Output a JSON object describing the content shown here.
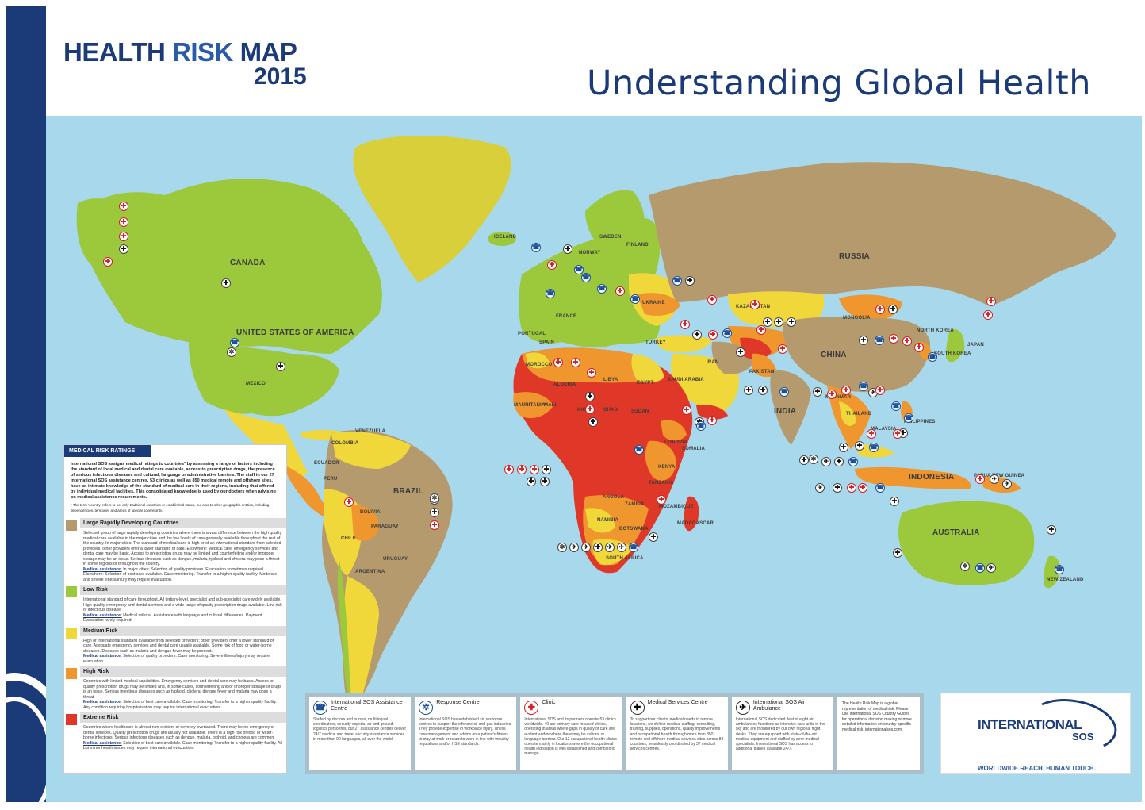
{
  "header": {
    "title_part1": "HEALTH",
    "title_part2": "RISK",
    "title_part3": "MAP",
    "year": "2015",
    "subtitle": "Understanding Global Health"
  },
  "colors": {
    "low_risk": "#9cc83c",
    "medium_risk": "#f0d83a",
    "high_risk": "#f0962e",
    "extreme_risk": "#e03828",
    "developing": "#b59a6e",
    "ocean": "#a8d8ec",
    "brand_navy": "#1a3a78"
  },
  "map_labels": [
    {
      "text": "CANADA"
    },
    {
      "text": "UNITED STATES OF AMERICA"
    },
    {
      "text": "MEXICO"
    },
    {
      "text": "BRAZIL"
    },
    {
      "text": "PERU"
    },
    {
      "text": "BOLIVIA"
    },
    {
      "text": "CHILE"
    },
    {
      "text": "ARGENTINA"
    },
    {
      "text": "COLOMBIA"
    },
    {
      "text": "VENEZUELA"
    },
    {
      "text": "ECUADOR"
    },
    {
      "text": "PARAGUAY"
    },
    {
      "text": "URUGUAY"
    },
    {
      "text": "ICELAND"
    },
    {
      "text": "NORWAY"
    },
    {
      "text": "SWEDEN"
    },
    {
      "text": "FINLAND"
    },
    {
      "text": "FRANCE"
    },
    {
      "text": "SPAIN"
    },
    {
      "text": "PORTUGAL"
    },
    {
      "text": "RUSSIA"
    },
    {
      "text": "UKRAINE"
    },
    {
      "text": "TURKEY"
    },
    {
      "text": "KAZAKHSTAN"
    },
    {
      "text": "MONGOLIA"
    },
    {
      "text": "CHINA"
    },
    {
      "text": "JAPAN"
    },
    {
      "text": "SOUTH KOREA"
    },
    {
      "text": "NORTH KOREA"
    },
    {
      "text": "IRAN"
    },
    {
      "text": "PAKISTAN"
    },
    {
      "text": "INDIA"
    },
    {
      "text": "MYANMAR"
    },
    {
      "text": "THAILAND"
    },
    {
      "text": "PHILIPPINES"
    },
    {
      "text": "MALAYSIA"
    },
    {
      "text": "INDONESIA"
    },
    {
      "text": "PAPUA NEW GUINEA"
    },
    {
      "text": "AUSTRALIA"
    },
    {
      "text": "NEW ZEALAND"
    },
    {
      "text": "ALGERIA"
    },
    {
      "text": "LIBYA"
    },
    {
      "text": "EGYPT"
    },
    {
      "text": "MALI"
    },
    {
      "text": "NIGER"
    },
    {
      "text": "CHAD"
    },
    {
      "text": "SUDAN"
    },
    {
      "text": "ETHIOPIA"
    },
    {
      "text": "SOMALIA"
    },
    {
      "text": "KENYA"
    },
    {
      "text": "TANZANIA"
    },
    {
      "text": "ANGOLA"
    },
    {
      "text": "ZAMBIA"
    },
    {
      "text": "NAMIBIA"
    },
    {
      "text": "BOTSWANA"
    },
    {
      "text": "SOUTH AFRICA"
    },
    {
      "text": "MADAGASCAR"
    },
    {
      "text": "SAUDI ARABIA"
    },
    {
      "text": "MOROCCO"
    },
    {
      "text": "MAURITANIA"
    },
    {
      "text": "MOZAMBIQUE"
    }
  ],
  "legend": {
    "header": "MEDICAL RISK RATINGS",
    "intro": "International SOS assigns medical ratings to countries* by assessing a range of factors including the standard of local medical and dental care available, access to prescription drugs, the presence of serious infectious diseases and cultural, language or administrative barriers. The staff in our 27 International SOS assistance centres, 53 clinics as well as 850 medical remote and offshore sites, have an intimate knowledge of the standard of medical care in their regions, including that offered by individual medical facilities. This consolidated knowledge is used by our doctors when advising on medical assistance requirements.",
    "intro_note": "* The term 'country' refers to not only traditional countries or established states, but also to other geographic entities, including dependencies, territories and areas of special sovereignty.",
    "categories": [
      {
        "title": "Large Rapidly Developing Countries",
        "text": "Selected group of large rapidly developing countries where there is a vast difference between the high quality medical care available in the major cities and the low levels of care generally available throughout the rest of the country. In major cities: The standard of medical care is high or of an international standard from selected providers, other providers offer a lower standard of care. Elsewhere: Medical care, emergency services and dental care may be basic. Access to prescription drugs may be limited and counterfeiting and/or improper storage may be an issue. Serious illnesses such as dengue, malaria, typhoid and cholera may pose a threat in some regions or throughout the country.",
        "assist_label": "Medical assistance:",
        "assist": "In major cities: Selection of quality providers. Evacuation sometimes required. Elsewhere: Selection of best care available. Case monitoring. Transfer to a higher quality facility. Moderate and severe illness/injury may require evacuation."
      },
      {
        "title": "Low Risk",
        "text": "International standard of care throughout. All tertiary-level, specialist and sub-specialist care widely available. High-quality emergency and dental services and a wide range of quality prescription drugs available. Low risk of infectious disease.",
        "assist_label": "Medical assistance:",
        "assist": "Medical referral. Assistance with language and cultural differences. Payment. Evacuation rarely required."
      },
      {
        "title": "Medium Risk",
        "text": "High or international standard available from selected providers; other providers offer a lower standard of care. Adequate emergency services and dental care usually available. Some risk of food or water-borne diseases. Diseases such as malaria and dengue fever may be present.",
        "assist_label": "Medical assistance:",
        "assist": "Selection of quality providers. Case monitoring. Severe illness/injury may require evacuation."
      },
      {
        "title": "High Risk",
        "text": "Countries with limited medical capabilities. Emergency services and dental care may be basic. Access to quality prescription drugs may be limited and, in some cases, counterfeiting and/or improper storage of drugs is an issue. Serious infectious diseases such as typhoid, cholera, dengue fever and malaria may pose a threat.",
        "assist_label": "Medical assistance:",
        "assist": "Selection of best care available. Case monitoring. Transfer to a higher quality facility. Any condition requiring hospitalisation may require international evacuation."
      },
      {
        "title": "Extreme Risk",
        "text": "Countries where healthcare is almost non-existent or severely overtaxed. There may be no emergency or dental services. Quality prescription drugs are usually not available. There is a high risk of food or water-borne infections. Serious infectious diseases such as dengue, malaria, typhoid, and cholera are common.",
        "assist_label": "Medical assistance:",
        "assist": "Selection of best care available. Case monitoring. Transfer to a higher quality facility. All but minor health issues may require international evacuation."
      }
    ]
  },
  "services": [
    {
      "icon": "phone-icon",
      "glyph": "☎",
      "title": "International SOS Assistance Centre",
      "text": "Staffed by doctors and nurses, multilingual coordinators, security experts, air and ground logistics personnel, our 27 assistance centres deliver 24/7 medical and travel security assistance services in more than 90 languages, all over the world."
    },
    {
      "icon": "response-icon",
      "glyph": "✲",
      "title": "Response Centre",
      "text": "International SOS has established six response centres to support the offshore oil and gas industries. They provide expertise in workplace injury, illness care management and advice on a patient's fitness to stay at work or return to work in line with industry regulations and/or HSE standards."
    },
    {
      "icon": "clinic-cross-icon",
      "glyph": "✚",
      "title": "Clinic",
      "text": "International SOS and its partners operate 53 clinics worldwide. 40 are primary care focused clinics, operating in areas where gaps in quality of care are evident and/or where there may be cultural or language barriers. Our 12 occupational health clinics operate mainly in locations where the occupational health legislation is well established and complex to manage."
    },
    {
      "icon": "medical-services-icon",
      "glyph": "✚",
      "title": "Medical Services Centre",
      "text": "To support our clients' medical needs in remote locations, we deliver medical staffing, consulting, training, supplies, operations, quality improvements and occupational health through more than 850 remote and offshore medical services sites across 89 countries, seamlessly coordinated by 37 medical services centres."
    },
    {
      "icon": "air-ambulance-icon",
      "glyph": "✈",
      "title": "International SOS Air Ambulance",
      "text": "International SOS dedicated fleet of eight air ambulances functions as intensive care units in the sky and are monitored by our own regional flight desks. They are equipped with state-of-the-art medical equipment and staffed by aero-medical specialists. International SOS has access to additional planes available 24/7."
    }
  ],
  "services_note": "The Health Risk Map is a global representation of medical risk. Please use International SOS Country Guides for operational decision making or more detailed information on country-specific medical risk. internationalsos.com",
  "brand": {
    "name": "INTERNATIONAL",
    "sub": "SOS",
    "tagline_a": "WORLDWIDE REACH.",
    "tagline_b": "HUMAN TOUCH."
  }
}
